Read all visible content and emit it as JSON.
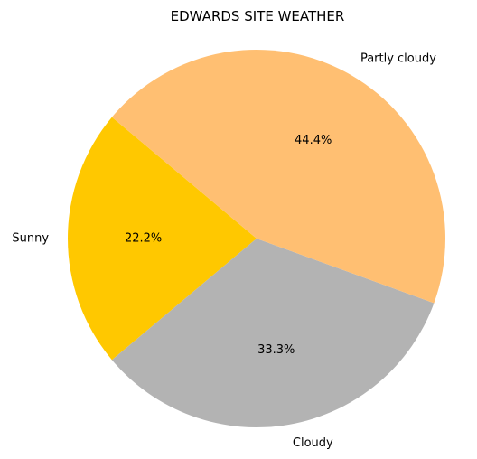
{
  "chart_data": {
    "type": "pie",
    "title": "EDWARDS SITE WEATHER",
    "start_angle_deg": 140,
    "direction": "counterclockwise",
    "slices": [
      {
        "label": "Sunny",
        "value": 22.2,
        "pct_label": "22.2%",
        "color": "#ffc800"
      },
      {
        "label": "Cloudy",
        "value": 33.3,
        "pct_label": "33.3%",
        "color": "#b3b3b3"
      },
      {
        "label": "Partly cloudy",
        "value": 44.4,
        "pct_label": "44.4%",
        "color": "#ffbf72"
      }
    ]
  }
}
